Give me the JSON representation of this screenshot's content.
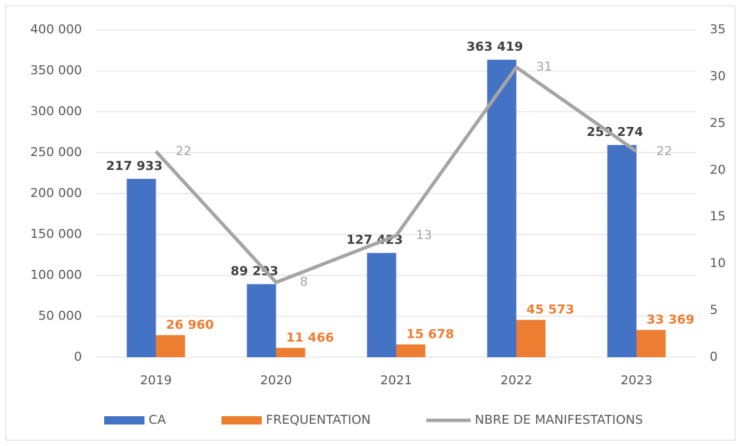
{
  "chart_data": {
    "type": "bar",
    "categories": [
      "2019",
      "2020",
      "2021",
      "2022",
      "2023"
    ],
    "series": [
      {
        "name": "CA",
        "color": "#4472c4",
        "type": "bar",
        "values": [
          217933,
          89293,
          127423,
          363419,
          259274
        ],
        "value_labels": [
          "217 933",
          "89 293",
          "127 423",
          "363 419",
          "259 274"
        ]
      },
      {
        "name": "FREQUENTATION",
        "color": "#ed7d31",
        "type": "bar",
        "values": [
          26960,
          11466,
          15678,
          45573,
          33369
        ],
        "value_labels": [
          "26 960",
          "11 466",
          "15 678",
          "45 573",
          "33 369"
        ]
      },
      {
        "name": "NBRE DE MANIFESTATIONS",
        "color": "#a5a5a5",
        "type": "line",
        "axis": "y2",
        "values": [
          22,
          8,
          13,
          31,
          22
        ]
      }
    ],
    "ylim": [
      0,
      400000
    ],
    "yticks": [
      0,
      {
        "value": 50000,
        "label": "50 000"
      },
      {
        "value": 100000,
        "label": "100 000"
      },
      {
        "value": 150000,
        "label": "150 000"
      },
      {
        "value": 200000,
        "label": "200 000"
      },
      {
        "value": 250000,
        "label": "250 000"
      },
      {
        "value": 300000,
        "label": "300 000"
      },
      {
        "value": 350000,
        "label": "350 000"
      },
      {
        "value": 400000,
        "label": "400 000"
      }
    ],
    "y2lim": [
      0,
      35
    ],
    "y2ticks": [
      0,
      5,
      10,
      15,
      20,
      25,
      30,
      35
    ],
    "grid": true,
    "legend": "bottom"
  }
}
